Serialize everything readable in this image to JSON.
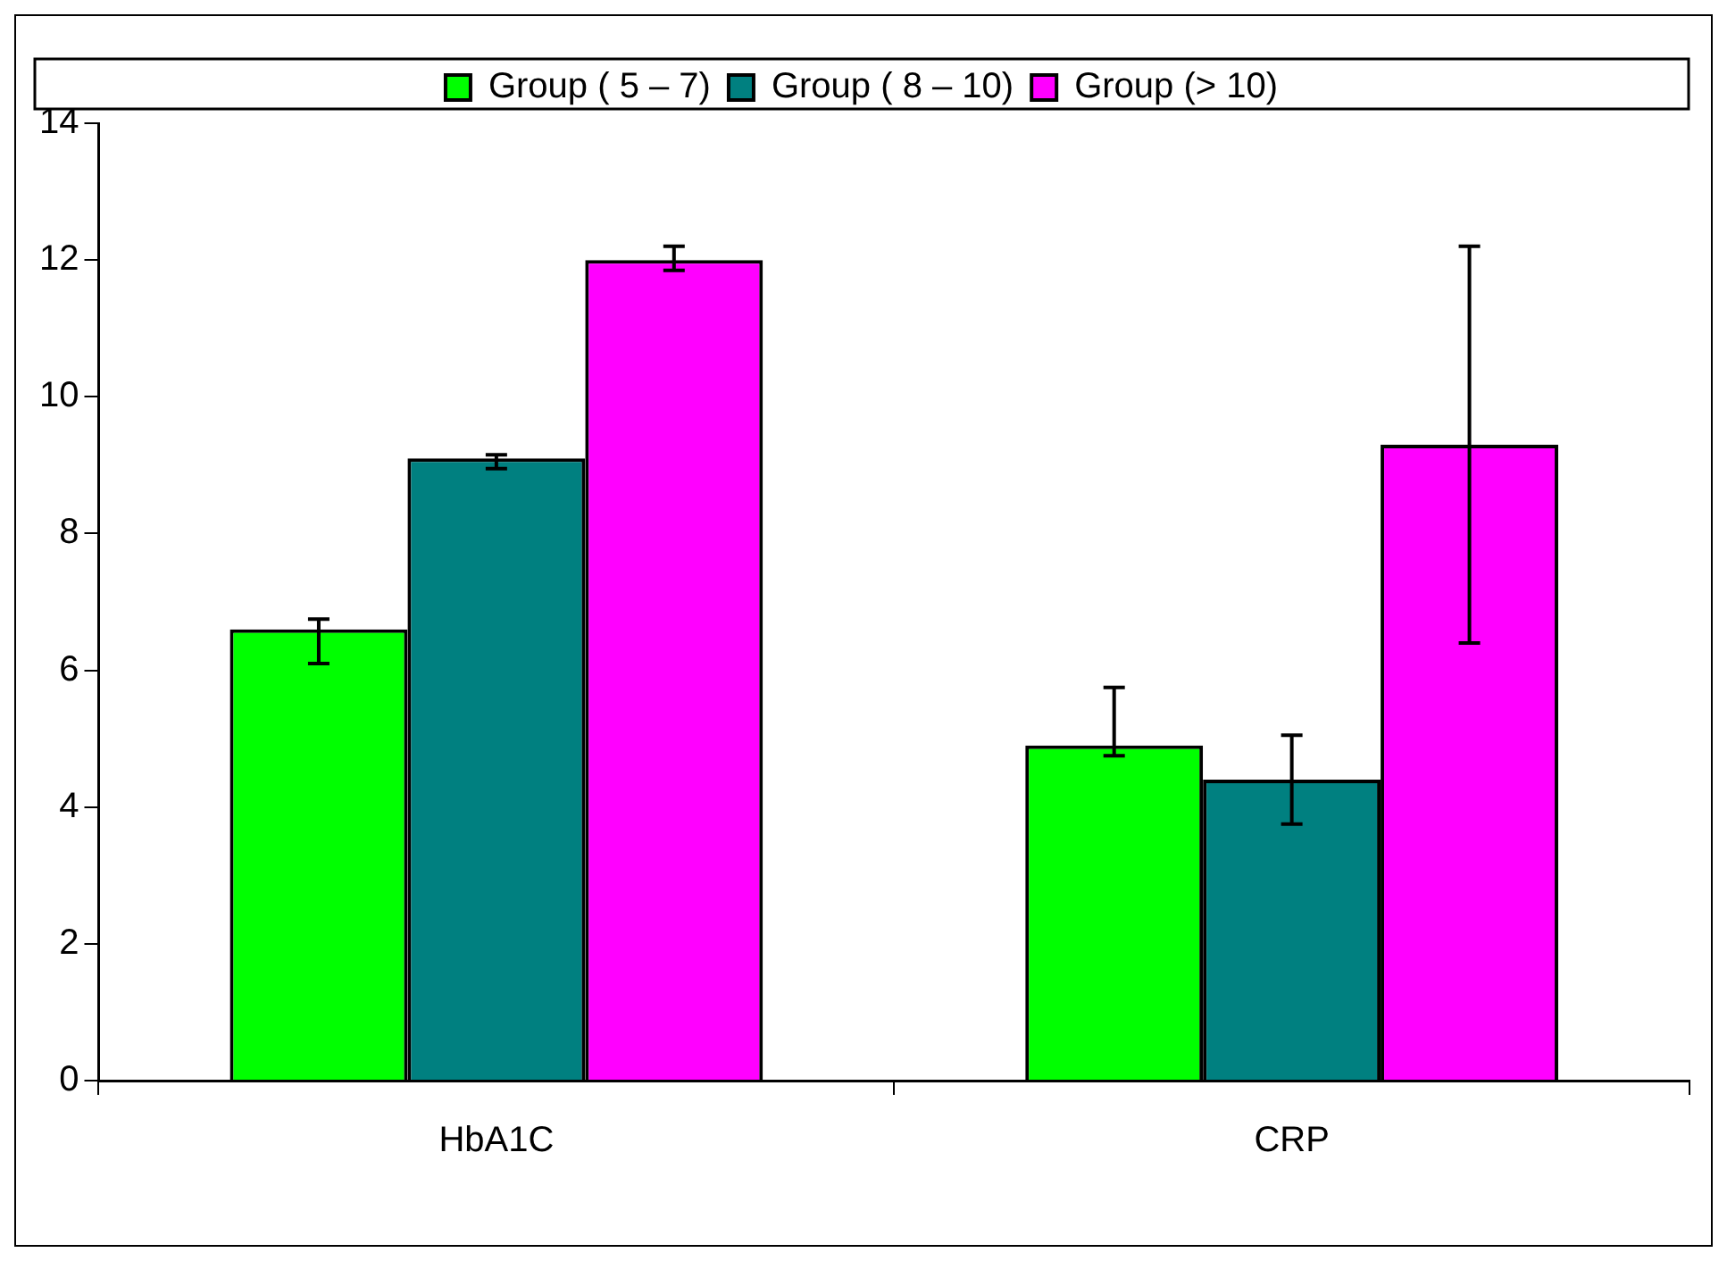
{
  "chart_data": {
    "type": "bar",
    "categories": [
      "HbA1C",
      "CRP"
    ],
    "series": [
      {
        "name": "Group ( 5 – 7)",
        "color": "#00ff00",
        "values": [
          6.6,
          4.9
        ],
        "errors": [
          [
            6.1,
            6.75
          ],
          [
            4.75,
            5.75
          ]
        ]
      },
      {
        "name": "Group ( 8 – 10)",
        "color": "#008080",
        "values": [
          9.1,
          4.4
        ],
        "errors": [
          [
            8.95,
            9.15
          ],
          [
            3.75,
            5.05
          ]
        ]
      },
      {
        "name": "Group (> 10)",
        "color": "#ff00ff",
        "values": [
          12,
          9.3
        ],
        "errors": [
          [
            11.85,
            12.2
          ],
          [
            6.4,
            12.2
          ]
        ]
      }
    ],
    "ylim": [
      0,
      14
    ],
    "yticks": [
      0,
      2,
      4,
      6,
      8,
      10,
      12,
      14
    ],
    "grid": false,
    "legend": "top"
  }
}
